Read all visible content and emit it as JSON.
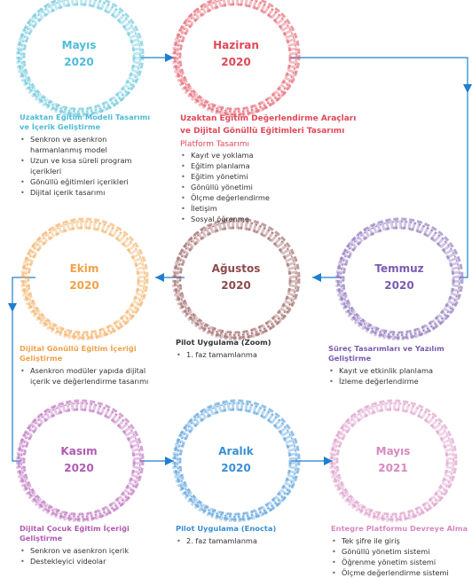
{
  "colors": {
    "line": "#1f7fd0",
    "cyan": "#4fbcd6",
    "red": "#e04857",
    "purple": "#7a5cb0",
    "maroon": "#8e4a4c",
    "orange": "#f0a24a",
    "magenta": "#b25ab3",
    "blue": "#3b8fd6",
    "pink": "#d78ac0"
  },
  "stages": [
    {
      "month": "Mayıs",
      "year": "2020",
      "heading": "Uzaktan Eğitim Modeli Tasarımı ve İçerik Geliştirme",
      "items": [
        "Senkron ve asenkron harmanlanmış model",
        "Uzun ve kısa süreli program içerikleri",
        "Gönüllü eğitimleri içerikleri",
        "Dijital içerik tasarımı"
      ]
    },
    {
      "month": "Haziran",
      "year": "2020",
      "heading": "Uzaktan Eğitim Değerlendirme Araçları ve Dijital Gönüllü Eğitimleri Tasarımı",
      "subheading": "Platform Tasarımı",
      "items": [
        "Kayıt ve yoklama",
        "Eğitim planlama",
        "Eğitim yönetimi",
        "Gönüllü yönetimi",
        "Ölçme değerlendirme",
        "İletişim",
        "Sosyal öğrenme"
      ]
    },
    {
      "month": "Temmuz",
      "year": "2020",
      "heading": "Süreç Tasarımları ve Yazılım Geliştirme",
      "items": [
        "Kayıt ve etkinlik planlama",
        "İzleme değerlendirme"
      ]
    },
    {
      "month": "Ağustos",
      "year": "2020",
      "heading": "Pilot Uygulama (Zoom)",
      "items": [
        "1. faz tamamlanma"
      ]
    },
    {
      "month": "Ekim",
      "year": "2020",
      "heading": "Dijital Gönüllü Eğitim İçeriği Geliştirme",
      "items": [
        "Asenkron modüler yapıda dijital içerik ve değerlendirme tasarımı"
      ]
    },
    {
      "month": "Kasım",
      "year": "2020",
      "heading": "Dijital Çocuk Eğitim İçeriği Geliştirme",
      "items": [
        "Senkron ve asenkron içerik",
        "Destekleyici videolar"
      ]
    },
    {
      "month": "Aralık",
      "year": "2020",
      "heading": "Pilot Uygulama (Enocta)",
      "items": [
        "2. faz tamamlanma"
      ]
    },
    {
      "month": "Mayıs",
      "year": "2021",
      "heading": "Entegre Platformu Devreye Alma",
      "items": [
        "Tek şifre ile giriş",
        "Gönüllü yönetim sistemi",
        "Öğrenme yönetim sistemi",
        "Ölçme değerlendirme sistemi"
      ]
    }
  ]
}
